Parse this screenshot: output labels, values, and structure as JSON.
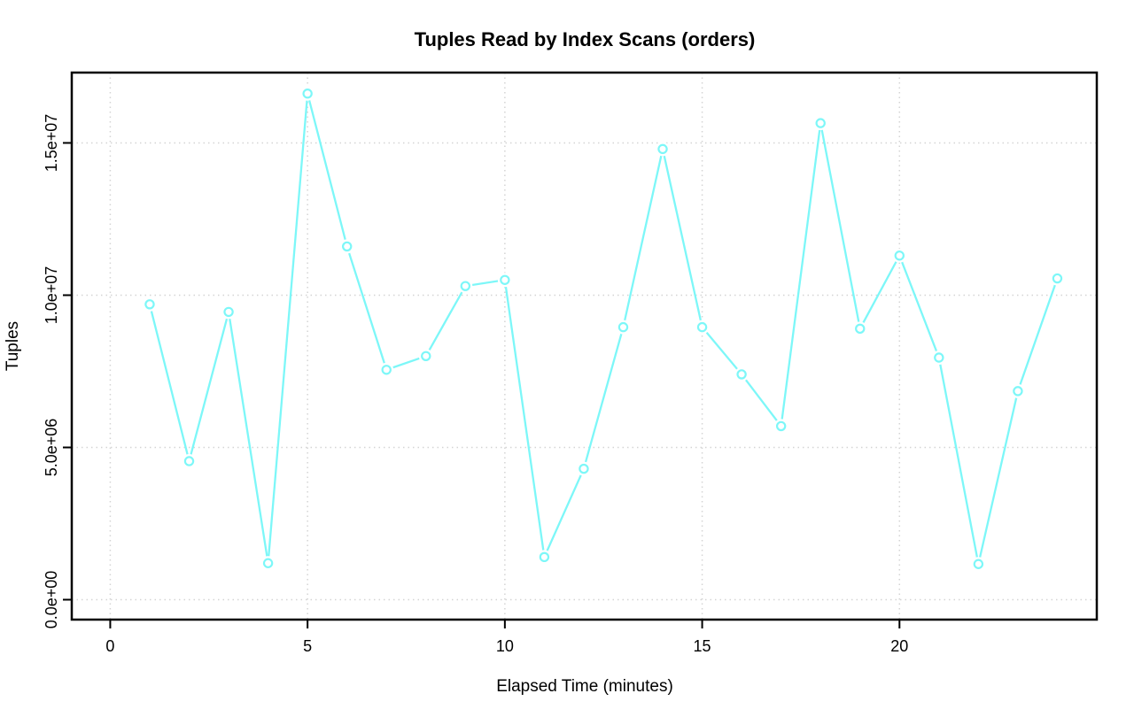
{
  "chart": {
    "title": "Tuples Read by Index Scans (orders)",
    "xlabel": "Elapsed Time (minutes)",
    "ylabel": "Tuples"
  },
  "chart_data": {
    "type": "line",
    "title": "Tuples Read by Index Scans (orders)",
    "xlabel": "Elapsed Time (minutes)",
    "ylabel": "Tuples",
    "x": [
      1,
      2,
      3,
      4,
      5,
      6,
      7,
      8,
      9,
      10,
      11,
      12,
      13,
      14,
      15,
      16,
      17,
      18,
      19,
      20,
      21,
      22,
      23,
      24
    ],
    "values": [
      9700000,
      4550000,
      9450000,
      1200000,
      16620000,
      11600000,
      7550000,
      8000000,
      10300000,
      10500000,
      1400000,
      4300000,
      8950000,
      14800000,
      8950000,
      7400000,
      5700000,
      15650000,
      8900000,
      11300000,
      7950000,
      1170000,
      6850000,
      10550000
    ],
    "x_ticks": [
      0,
      5,
      10,
      15,
      20
    ],
    "y_ticks": [
      {
        "value": 0,
        "label": "0.0e+00"
      },
      {
        "value": 5000000,
        "label": "5.0e+06"
      },
      {
        "value": 10000000,
        "label": "1.0e+07"
      },
      {
        "value": 15000000,
        "label": "1.5e+07"
      }
    ],
    "xlim": [
      -0.975,
      25.0
    ],
    "ylim": [
      -654000,
      17310000
    ],
    "grid": true,
    "grid_style": "dotted",
    "legend_position": "none",
    "marker": "open-circle",
    "line_type": "points-with-line-breaks",
    "colors": {
      "series": "#7df7f8",
      "grid": "#d4d4d4",
      "axis": "#000000",
      "background": "#ffffff"
    }
  }
}
